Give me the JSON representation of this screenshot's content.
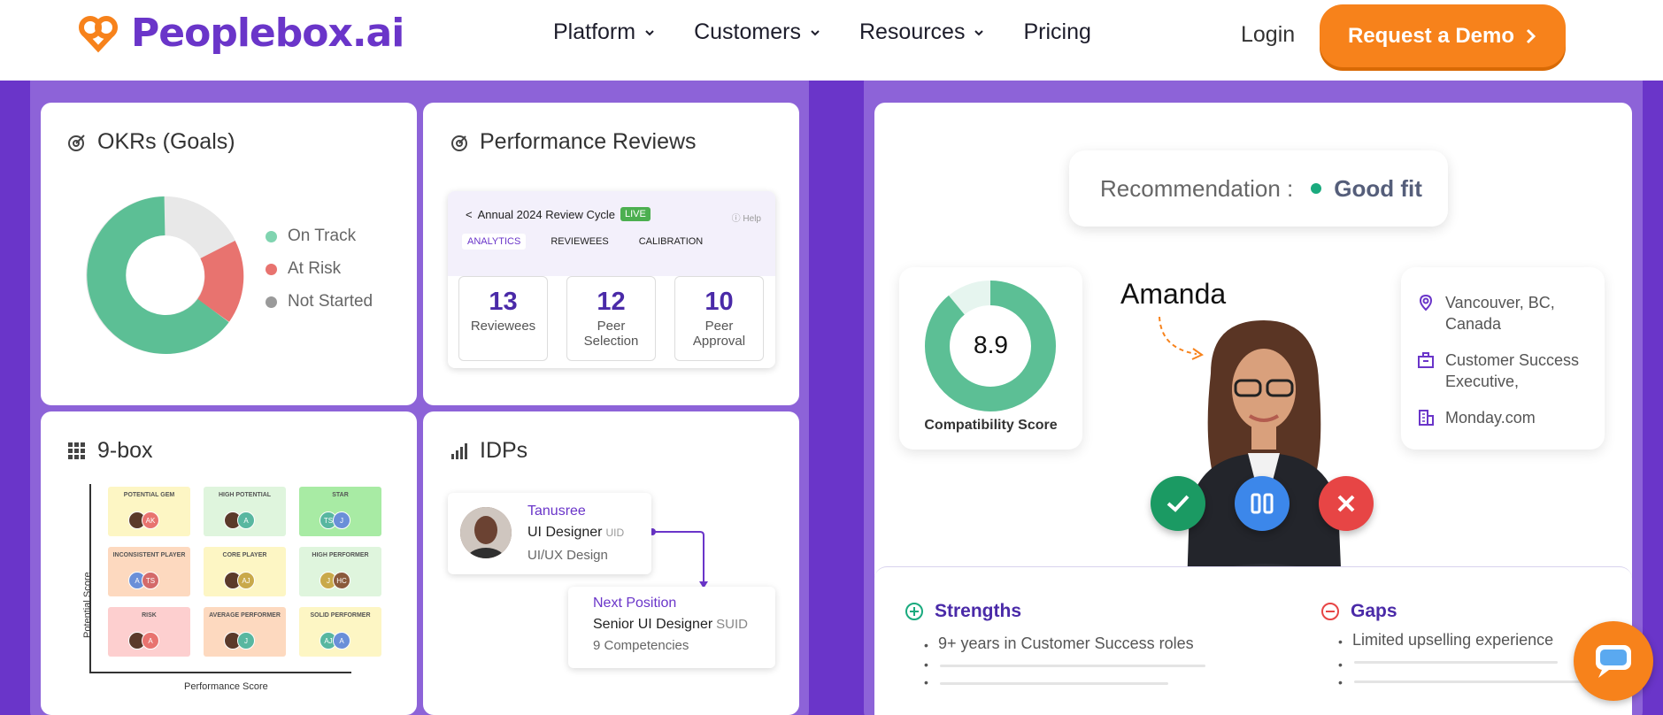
{
  "nav": {
    "brand": "Peoplebox.ai",
    "menu": [
      {
        "label": "Platform"
      },
      {
        "label": "Customers"
      },
      {
        "label": "Resources"
      },
      {
        "label": "Pricing"
      }
    ],
    "login": "Login",
    "cta": "Request a Demo",
    "colors": {
      "brand": "#6a35c9",
      "accent": "#f7821b"
    }
  },
  "okr": {
    "title": "OKRs (Goals)",
    "legend": [
      {
        "label": "On Track",
        "color": "#5cbf95"
      },
      {
        "label": "At Risk",
        "color": "#e8736f"
      },
      {
        "label": "Not Started",
        "color": "#9a9a9a"
      }
    ]
  },
  "performance": {
    "title": "Performance Reviews",
    "cycle": "Annual 2024 Review Cycle",
    "live": "LIVE",
    "help": "Help",
    "tabs": [
      "ANALYTICS",
      "REVIEWEES",
      "CALIBRATION"
    ],
    "stats": [
      {
        "value": "13",
        "label": "Reviewees"
      },
      {
        "value": "12",
        "label": "Peer Selection"
      },
      {
        "value": "10",
        "label": "Peer Approval"
      }
    ]
  },
  "ninebox": {
    "title": "9-box",
    "y_axis": "Potential Score",
    "x_axis": "Performance Score",
    "cells": [
      {
        "label": "POTENTIAL GEM",
        "color": "#fdf6c4",
        "avatars": [
          "",
          "AK"
        ]
      },
      {
        "label": "HIGH POTENTIAL",
        "color": "#dff5dd",
        "avatars": [
          "",
          "A"
        ]
      },
      {
        "label": "STAR",
        "color": "#a8eba4",
        "avatars": [
          "TS",
          "J"
        ]
      },
      {
        "label": "INCONSISTENT PLAYER",
        "color": "#fdd9bf",
        "avatars": [
          "A",
          "TS"
        ]
      },
      {
        "label": "CORE PLAYER",
        "color": "#fdf6c4",
        "avatars": [
          "",
          "AJ"
        ]
      },
      {
        "label": "HIGH PERFORMER",
        "color": "#dff5dd",
        "avatars": [
          "J",
          "HC"
        ]
      },
      {
        "label": "RISK",
        "color": "#fdcfcf",
        "avatars": [
          "",
          "A"
        ]
      },
      {
        "label": "AVERAGE PERFORMER",
        "color": "#fdd9bf",
        "avatars": [
          "",
          "J"
        ]
      },
      {
        "label": "SOLID PERFORMER",
        "color": "#fdf6c4",
        "avatars": [
          "AJ",
          "A"
        ]
      }
    ]
  },
  "idp": {
    "title": "IDPs",
    "current": {
      "name": "Tanusree",
      "role": "UI Designer",
      "code": "UID",
      "dept": "UI/UX Design"
    },
    "next": {
      "title": "Next Position",
      "role": "Senior UI Designer",
      "code": "SUID",
      "competencies": "9 Competencies"
    }
  },
  "candidate": {
    "reco_label": "Recommendation :",
    "reco_value": "Good fit",
    "score": "8.9",
    "score_fraction": 0.89,
    "score_label": "Compatibility Score",
    "name": "Amanda",
    "location": "Vancouver, BC, Canada",
    "position": "Customer Success Executive,",
    "company": "Monday.com",
    "strengths_title": "Strengths",
    "strengths": [
      "9+ years in Customer Success roles"
    ],
    "gaps_title": "Gaps",
    "gaps": [
      "Limited upselling experience"
    ]
  }
}
